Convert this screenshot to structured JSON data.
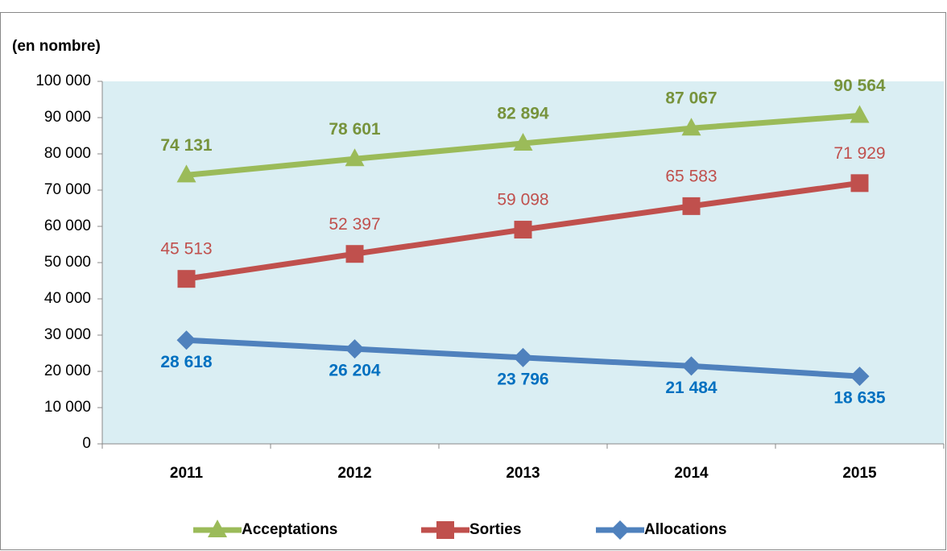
{
  "chart_data": {
    "type": "line",
    "ylabel": "(en nombre)",
    "categories": [
      "2011",
      "2012",
      "2013",
      "2014",
      "2015"
    ],
    "series": [
      {
        "name": "Acceptations",
        "color": "#9bbb59",
        "label_color": "#77933c",
        "marker": "triangle",
        "values": [
          74131,
          78601,
          82894,
          87067,
          90564
        ],
        "value_labels": [
          "74 131",
          "78 601",
          "82 894",
          "87 067",
          "90 564"
        ]
      },
      {
        "name": "Sorties",
        "color": "#c0504d",
        "label_color": "#c0504d",
        "marker": "square",
        "values": [
          45513,
          52397,
          59098,
          65583,
          71929
        ],
        "value_labels": [
          "45 513",
          "52 397",
          "59 098",
          "65 583",
          "71 929"
        ]
      },
      {
        "name": "Allocations",
        "color": "#4f81bd",
        "label_color": "#0070c0",
        "marker": "diamond",
        "values": [
          28618,
          26204,
          23796,
          21484,
          18635
        ],
        "value_labels": [
          "28 618",
          "26 204",
          "23 796",
          "21 484",
          "18 635"
        ]
      }
    ],
    "ylim": [
      0,
      100000
    ],
    "yticks": [
      0,
      {
        "value": 10000,
        "label": "10 000"
      },
      {
        "value": 20000,
        "label": "20 000"
      },
      {
        "value": 30000,
        "label": "30 000"
      },
      {
        "value": 40000,
        "label": "40 000"
      },
      {
        "value": 50000,
        "label": "50 000"
      },
      {
        "value": 60000,
        "label": "60 000"
      },
      {
        "value": 70000,
        "label": "70 000"
      },
      {
        "value": 80000,
        "label": "80 000"
      },
      {
        "value": 90000,
        "label": "90 000"
      },
      {
        "value": 100000,
        "label": "100 000"
      }
    ],
    "plot_background": "#daeef3"
  }
}
